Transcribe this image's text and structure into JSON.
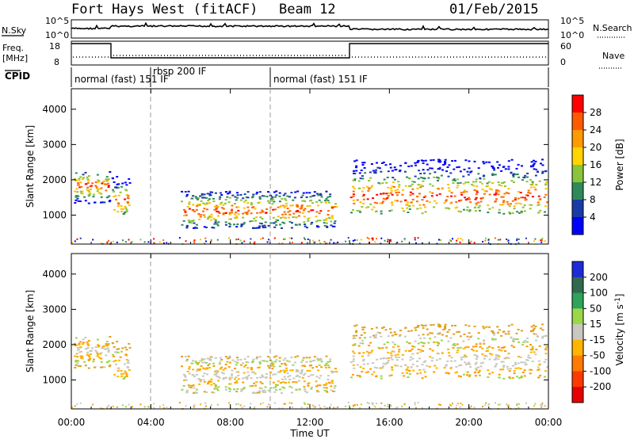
{
  "header": {
    "radar": "Fort Hays West (fitACF)",
    "beam": "Beam 12",
    "date": "01/Feb/2015"
  },
  "noise_panel": {
    "left_label": "N.Sky",
    "right_label": "N.Search",
    "tick_hi": "10^5",
    "tick_lo": "10^0"
  },
  "freq_panel": {
    "left_label_1": "Freq.",
    "left_label_2": "[MHz]",
    "right_label": "Nave",
    "left_ticks": [
      "18",
      "8"
    ],
    "right_ticks": [
      "60",
      "0"
    ]
  },
  "cpid_panel": {
    "label": "CPID",
    "segments": [
      {
        "text": "normal (fast) 151 IF",
        "start": "00:00"
      },
      {
        "text": "rbsp 200 IF",
        "start": "03:56"
      },
      {
        "text": "normal (fast) 151 IF",
        "start": "10:00"
      }
    ]
  },
  "power_colorbar": {
    "label": "Power [dB]",
    "ticks": [
      "28",
      "24",
      "20",
      "16",
      "12",
      "8",
      "4"
    ],
    "colors": [
      "#ff0000",
      "#ff5a00",
      "#ff9a00",
      "#ffd400",
      "#8ac43a",
      "#2f8a5a",
      "#1a3aa8",
      "#0000ff"
    ]
  },
  "velocity_colorbar": {
    "label": "Velocity [m s",
    "label_sup": "-1",
    "label_end": "]",
    "ticks": [
      "200",
      "100",
      "50",
      "15",
      "-15",
      "-50",
      "-100",
      "-200"
    ],
    "colors": [
      "#1e2ad8",
      "#2f6a4f",
      "#2ea35a",
      "#9ad84a",
      "#c8c8c0",
      "#ffb400",
      "#ff7a00",
      "#ff3a00",
      "#e60000"
    ]
  },
  "chart_data": [
    {
      "type": "heatmap",
      "title": "Fort Hays West (fitACF) Beam 12 Power",
      "ylabel": "Slant Range [km]",
      "xlabel": "Time UT",
      "x_ticks": [
        "00:00",
        "04:00",
        "08:00",
        "12:00",
        "16:00",
        "20:00",
        "00:00"
      ],
      "y_ticks": [
        1000,
        2000,
        3000,
        4000
      ],
      "ylim": [
        180,
        4580
      ],
      "xlim_hours": [
        0,
        24
      ],
      "colorbar": "Power [dB]"
    },
    {
      "type": "heatmap",
      "title": "Fort Hays West (fitACF) Beam 12 Velocity",
      "ylabel": "Slant Range [km]",
      "xlabel": "Time UT",
      "x_ticks": [
        "00:00",
        "04:00",
        "08:00",
        "12:00",
        "16:00",
        "20:00",
        "00:00"
      ],
      "y_ticks": [
        1000,
        2000,
        3000,
        4000
      ],
      "ylim": [
        180,
        4580
      ],
      "xlim_hours": [
        0,
        24
      ],
      "colorbar": "Velocity [m s-1]"
    }
  ],
  "axis": {
    "xlabel": "Time UT",
    "ylabel": "Slant Range [km]",
    "x_ticks": [
      "00:00",
      "04:00",
      "08:00",
      "12:00",
      "16:00",
      "20:00",
      "00:00"
    ],
    "y_ticks": [
      "1000",
      "2000",
      "3000",
      "4000"
    ]
  }
}
